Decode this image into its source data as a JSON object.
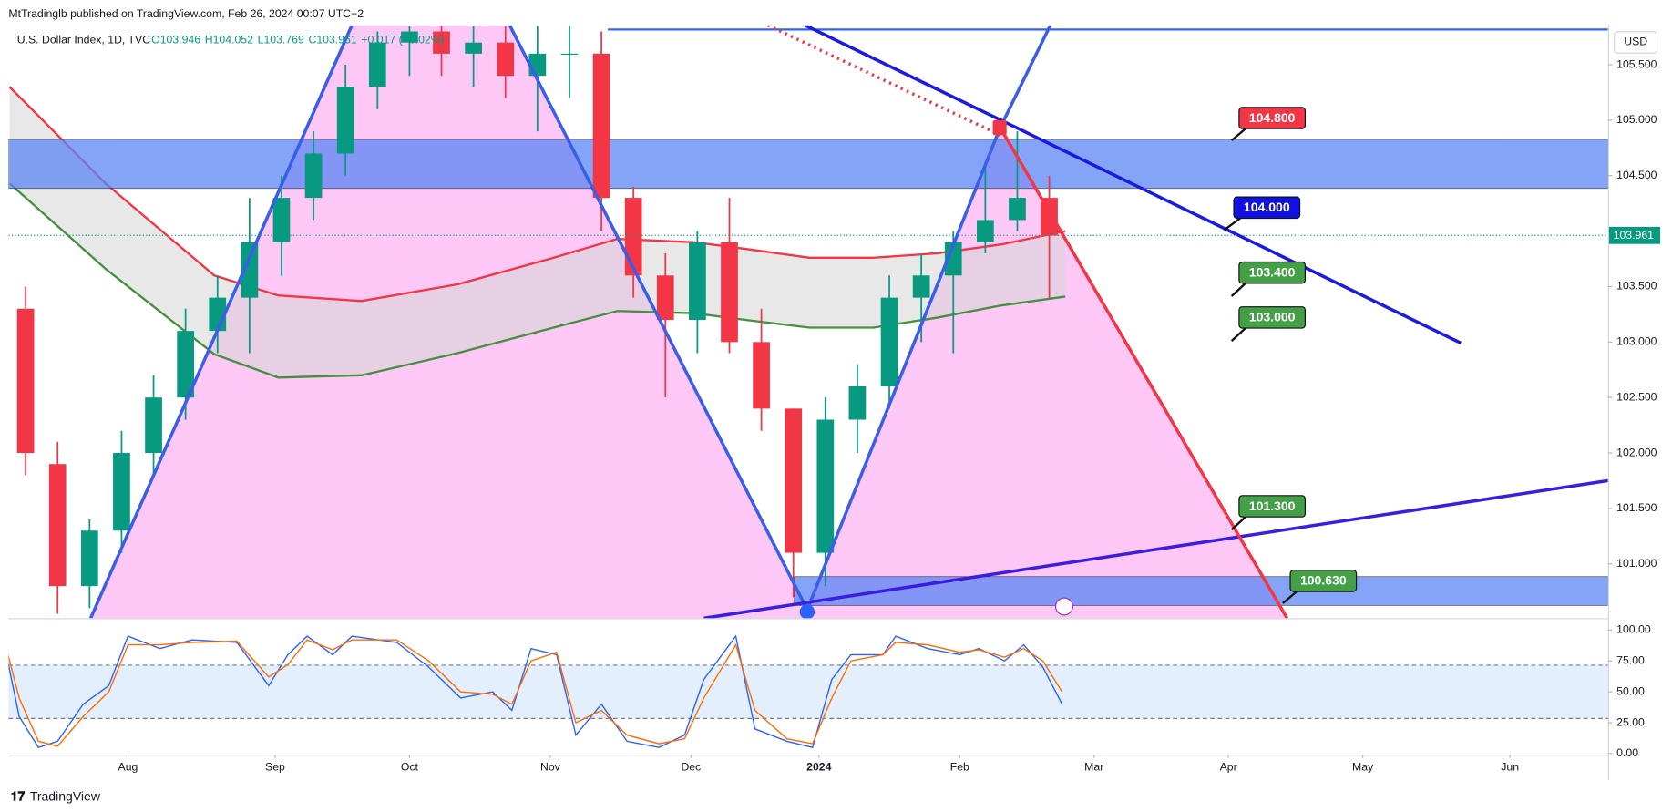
{
  "chart_data": {
    "type": "candlestick",
    "publisher": "MtTradinglb published on TradingView.com, Feb 26, 2024 00:07 UTC+2",
    "title": "U.S. Dollar Index, 1D, TVC",
    "ohlc_legend": [
      "O103.946",
      "H104.052",
      "L103.769",
      "C103.961",
      "+0.017 (+0.02%)"
    ],
    "currency": "USD",
    "last_price": 103.961,
    "up_color": "#089981",
    "down_color": "#f23645",
    "xlim": [
      -0.67,
      249.33
    ],
    "xticks": [
      {
        "value": 18,
        "label": "Aug"
      },
      {
        "value": 41,
        "label": "Sep"
      },
      {
        "value": 62,
        "label": "Oct"
      },
      {
        "value": 84,
        "label": "Nov"
      },
      {
        "value": 106,
        "label": "Dec"
      },
      {
        "value": 126,
        "label": "2024"
      },
      {
        "value": 148,
        "label": "Feb"
      },
      {
        "value": 169,
        "label": "Mar"
      },
      {
        "value": 190,
        "label": "Apr"
      },
      {
        "value": 211,
        "label": "May"
      },
      {
        "value": 234,
        "label": "Jun"
      }
    ],
    "ylim": [
      100.51,
      105.856
    ],
    "yticks": [
      {
        "value": 101,
        "label": "101.000"
      },
      {
        "value": 101.5,
        "label": "101.500"
      },
      {
        "value": 102,
        "label": "102.000"
      },
      {
        "value": 102.5,
        "label": "102.500"
      },
      {
        "value": 103,
        "label": "103.000"
      },
      {
        "value": 103.5,
        "label": "103.500"
      },
      {
        "value": 104.5,
        "label": "104.500"
      },
      {
        "value": 105,
        "label": "105.000"
      },
      {
        "value": 105.5,
        "label": "105.500"
      }
    ],
    "x": [
      2,
      7,
      12,
      17,
      22,
      27,
      32,
      37,
      42,
      47,
      52,
      57,
      62,
      67,
      72,
      77,
      82,
      87,
      92,
      97,
      102,
      107,
      112,
      117,
      122,
      127,
      132,
      137,
      142,
      147,
      152,
      157,
      162
    ],
    "open": [
      103.3,
      101.9,
      100.8,
      101.3,
      102.0,
      102.5,
      103.1,
      103.4,
      103.9,
      104.3,
      104.7,
      105.3,
      105.7,
      105.8,
      105.6,
      105.7,
      105.4,
      105.6,
      105.6,
      104.3,
      103.6,
      103.2,
      103.9,
      103.0,
      102.4,
      101.1,
      102.3,
      102.6,
      103.4,
      103.6,
      103.9,
      104.1,
      104.3
    ],
    "high": [
      103.5,
      102.1,
      101.4,
      102.2,
      102.7,
      103.3,
      103.6,
      104.3,
      104.5,
      104.9,
      105.5,
      105.8,
      105.85,
      105.85,
      105.85,
      105.85,
      105.85,
      105.85,
      105.8,
      104.4,
      103.8,
      104.0,
      104.3,
      103.3,
      102.4,
      102.5,
      102.8,
      103.6,
      103.8,
      104.0,
      104.6,
      104.9,
      104.5
    ],
    "low": [
      101.8,
      100.55,
      100.6,
      101.1,
      101.8,
      102.3,
      102.9,
      102.9,
      103.6,
      104.1,
      104.5,
      105.1,
      105.4,
      105.4,
      105.3,
      105.2,
      104.9,
      105.2,
      104.0,
      103.4,
      102.5,
      102.9,
      102.9,
      102.2,
      100.7,
      100.8,
      102.0,
      102.4,
      103.0,
      102.9,
      103.8,
      104.0,
      103.4
    ],
    "close": [
      102.0,
      100.8,
      101.3,
      102.0,
      102.5,
      103.1,
      103.4,
      103.9,
      104.3,
      104.7,
      105.3,
      105.7,
      105.8,
      105.6,
      105.7,
      105.4,
      105.6,
      105.6,
      104.3,
      103.6,
      103.2,
      103.9,
      103.0,
      102.4,
      101.1,
      102.3,
      102.6,
      103.4,
      103.6,
      103.9,
      104.1,
      104.3,
      103.96
    ],
    "moving_averages": [
      {
        "color": "#f23645",
        "x": [
          -0.5,
          14.5,
          31.5,
          41.5,
          54.5,
          69.5,
          84.5,
          94.5,
          106.5,
          114.5,
          124.5,
          134.5,
          144.5,
          154.5,
          164.5
        ],
        "values": [
          105.3,
          104.43,
          103.6,
          103.42,
          103.37,
          103.52,
          103.76,
          103.93,
          103.9,
          103.84,
          103.76,
          103.76,
          103.8,
          103.88,
          104.0
        ]
      },
      {
        "color": "#43903f",
        "x": [
          -0.5,
          14.5,
          31.5,
          41.5,
          54.5,
          69.5,
          84.5,
          94.5,
          106.5,
          114.5,
          124.5,
          134.5,
          144.5,
          154.5,
          164.5
        ],
        "values": [
          104.43,
          103.66,
          102.89,
          102.68,
          102.7,
          102.9,
          103.13,
          103.28,
          103.26,
          103.2,
          103.13,
          103.13,
          103.22,
          103.33,
          103.41
        ]
      }
    ],
    "annotations": [
      {
        "label": "104.800",
        "color": "#f23645"
      },
      {
        "label": "104.000",
        "color": "#1010e0"
      },
      {
        "label": "103.400",
        "color": "#43a047"
      },
      {
        "label": "103.000",
        "color": "#43a047"
      },
      {
        "label": "101.300",
        "color": "#43a047"
      },
      {
        "label": "100.630",
        "color": "#43a047"
      }
    ],
    "indicator": {
      "ylim": [
        -0.9,
        107.8
      ],
      "yticks": [
        {
          "value": 0,
          "label": "0.00"
        },
        {
          "value": 25,
          "label": "25.00"
        },
        {
          "value": 50,
          "label": "50.00"
        },
        {
          "value": 75,
          "label": "75.00"
        },
        {
          "value": 100,
          "label": "100.00"
        }
      ],
      "x": [
        -1,
        1,
        4,
        7,
        11,
        15,
        18,
        23,
        28,
        35,
        40,
        43,
        46,
        50,
        53,
        60,
        65,
        70,
        75,
        78,
        81,
        85,
        88,
        92,
        96,
        101,
        105,
        108,
        113,
        116,
        121,
        125,
        128,
        131,
        136,
        138,
        143,
        148,
        151,
        155,
        158,
        161,
        164
      ],
      "series": [
        {
          "color": "#2962ff",
          "values": [
            80,
            30,
            5,
            10,
            40,
            55,
            95,
            85,
            92,
            90,
            55,
            80,
            95,
            80,
            95,
            90,
            70,
            45,
            50,
            35,
            85,
            80,
            15,
            40,
            10,
            5,
            15,
            60,
            95,
            20,
            10,
            5,
            60,
            80,
            80,
            95,
            85,
            80,
            85,
            75,
            88,
            70,
            40
          ]
        },
        {
          "color": "#ff6d00",
          "values": [
            85,
            45,
            10,
            6,
            30,
            50,
            88,
            88,
            90,
            91,
            62,
            72,
            92,
            84,
            92,
            92,
            75,
            50,
            48,
            40,
            75,
            82,
            25,
            35,
            15,
            8,
            12,
            45,
            88,
            35,
            12,
            8,
            45,
            75,
            80,
            90,
            88,
            82,
            84,
            78,
            85,
            75,
            50
          ]
        }
      ]
    },
    "branding": "TradingView"
  }
}
